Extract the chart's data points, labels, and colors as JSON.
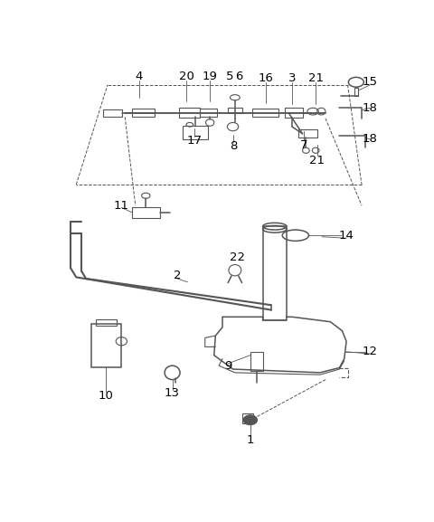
{
  "bg_color": "#ffffff",
  "line_color": "#555555",
  "label_color": "#000000",
  "font_size": 9
}
